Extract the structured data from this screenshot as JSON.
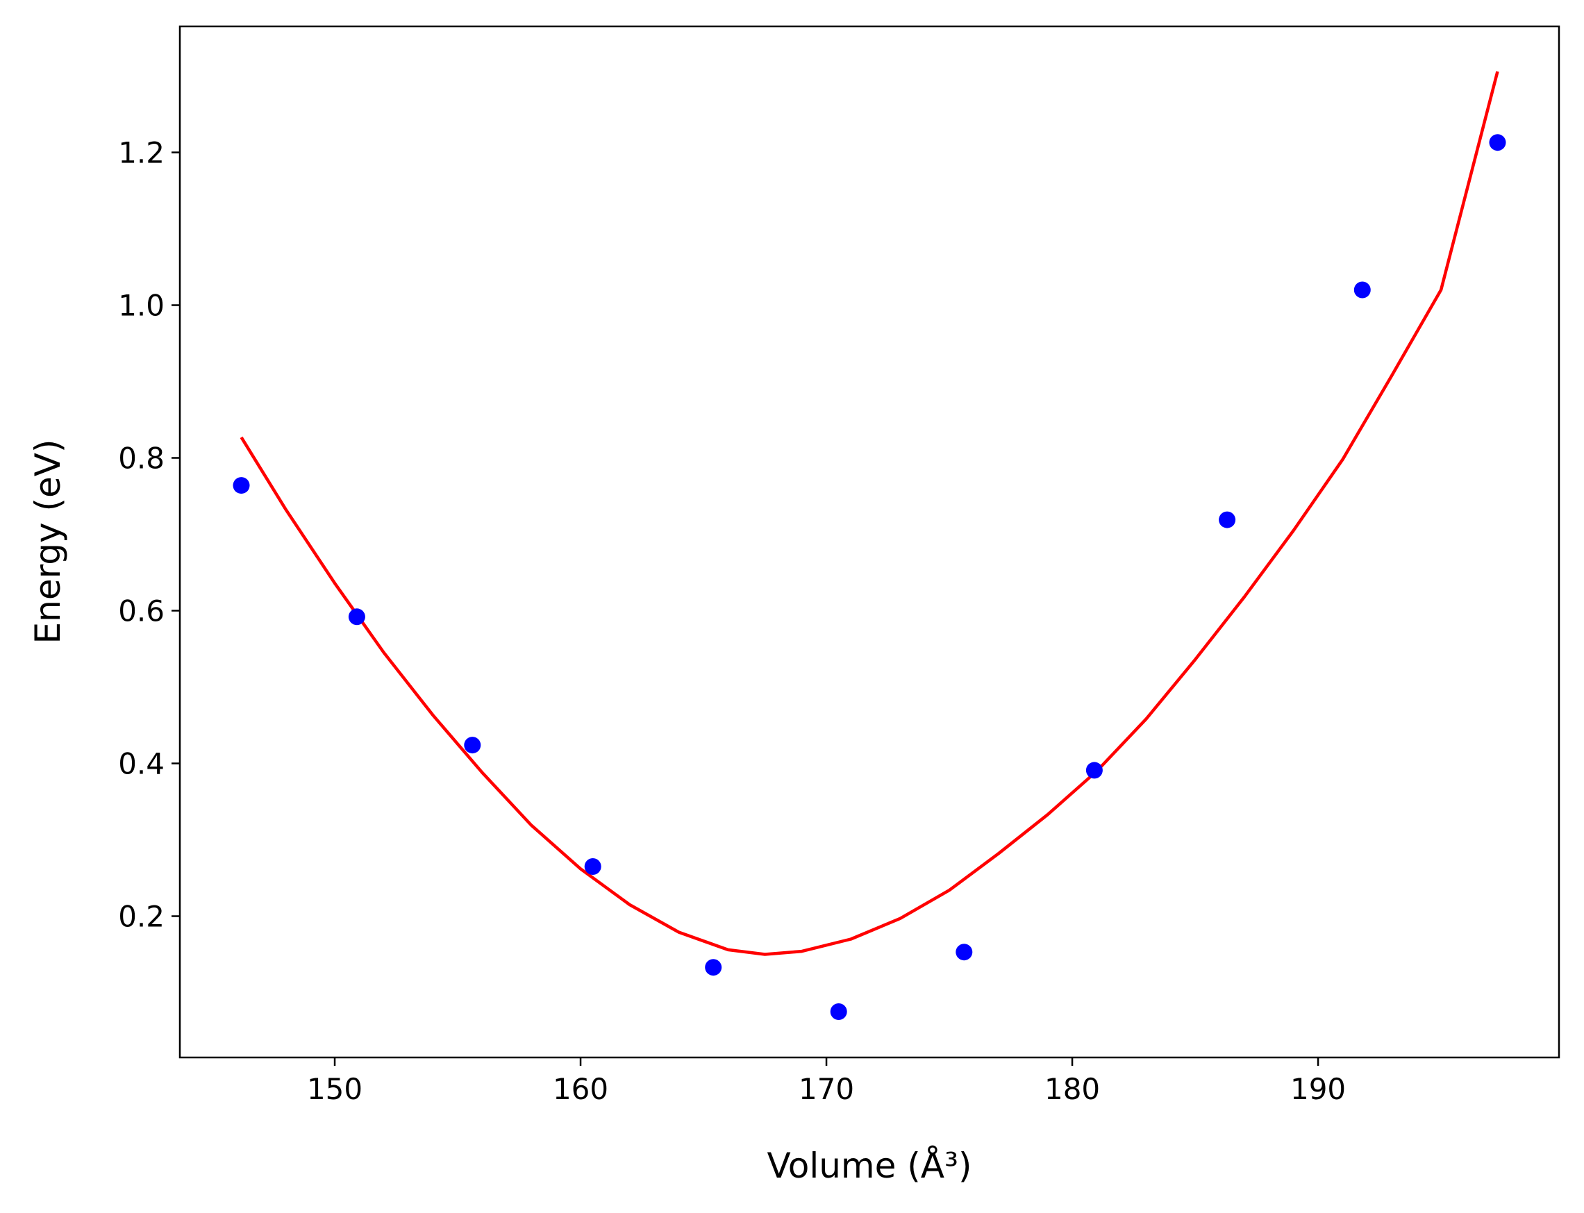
{
  "chart_data": {
    "type": "scatter",
    "xlabel": "Volume (Å³)",
    "ylabel": "Energy (eV)",
    "xlim": [
      143.7,
      199.8
    ],
    "ylim": [
      0.015,
      1.365
    ],
    "xticks": [
      150,
      160,
      170,
      180,
      190
    ],
    "yticks": [
      0.2,
      0.4,
      0.6,
      0.8,
      1.0,
      1.2
    ],
    "xtick_labels": [
      "150",
      "160",
      "170",
      "180",
      "190"
    ],
    "ytick_labels": [
      "0.2",
      "0.4",
      "0.6",
      "0.8",
      "1.0",
      "1.2"
    ],
    "grid": false,
    "series": [
      {
        "kind": "points",
        "color": "#0000ff",
        "x": [
          146.2,
          150.9,
          155.6,
          160.5,
          165.4,
          170.5,
          175.6,
          180.9,
          186.3,
          191.8,
          197.3
        ],
        "y": [
          0.764,
          0.592,
          0.424,
          0.265,
          0.133,
          0.075,
          0.153,
          0.391,
          0.719,
          1.02,
          1.213
        ]
      },
      {
        "kind": "fit-curve",
        "color": "#ff0000",
        "x": [
          146.2,
          148.0,
          150.0,
          152.0,
          154.0,
          156.0,
          158.0,
          160.0,
          162.0,
          164.0,
          166.0,
          167.5,
          169.0,
          171.0,
          173.0,
          175.0,
          177.0,
          179.0,
          181.0,
          183.0,
          185.0,
          187.0,
          189.0,
          191.0,
          193.0,
          195.0,
          197.3
        ],
        "y": [
          0.827,
          0.733,
          0.636,
          0.545,
          0.463,
          0.388,
          0.319,
          0.262,
          0.215,
          0.179,
          0.156,
          0.15,
          0.154,
          0.17,
          0.197,
          0.234,
          0.282,
          0.333,
          0.39,
          0.458,
          0.536,
          0.618,
          0.705,
          0.798,
          0.908,
          1.02,
          1.306
        ]
      }
    ]
  }
}
